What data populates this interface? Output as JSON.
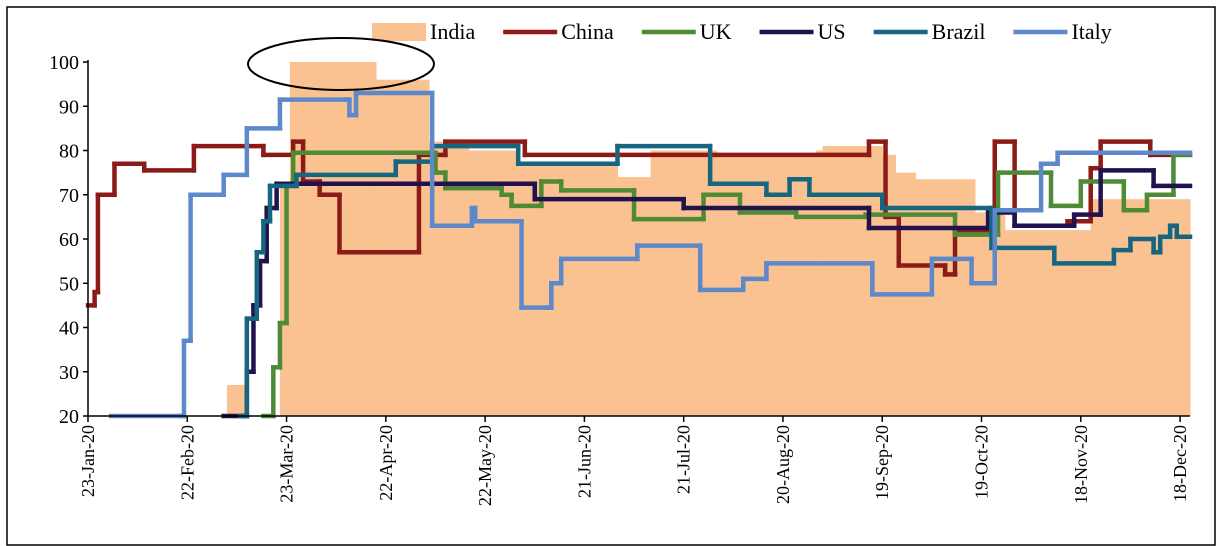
{
  "chart_data": {
    "type": "line",
    "step": true,
    "xlim": [
      "2020-01-23",
      "2020-12-21"
    ],
    "xticks": [
      {
        "value": "2020-01-23",
        "label": "23-Jan-20"
      },
      {
        "value": "2020-02-22",
        "label": "22-Feb-20"
      },
      {
        "value": "2020-03-23",
        "label": "23-Mar-20"
      },
      {
        "value": "2020-04-22",
        "label": "22-Apr-20"
      },
      {
        "value": "2020-05-22",
        "label": "22-May-20"
      },
      {
        "value": "2020-06-21",
        "label": "21-Jun-20"
      },
      {
        "value": "2020-07-21",
        "label": "21-Jul-20"
      },
      {
        "value": "2020-08-20",
        "label": "20-Aug-20"
      },
      {
        "value": "2020-09-19",
        "label": "19-Sep-20"
      },
      {
        "value": "2020-10-19",
        "label": "19-Oct-20"
      },
      {
        "value": "2020-11-18",
        "label": "18-Nov-20"
      },
      {
        "value": "2020-12-18",
        "label": "18-Dec-20"
      }
    ],
    "ylim": [
      20,
      100
    ],
    "yticks": [
      20,
      30,
      40,
      50,
      60,
      70,
      80,
      90,
      100
    ],
    "grid": false,
    "legend": "top",
    "series": [
      {
        "name": "India",
        "kind": "area",
        "color": "#fac191",
        "x": [
          "2020-01-23",
          "2020-03-05",
          "2020-03-11",
          "2020-03-21",
          "2020-03-24",
          "2020-04-19",
          "2020-05-05",
          "2020-05-17",
          "2020-06-01",
          "2020-07-01",
          "2020-07-11",
          "2020-07-31",
          "2020-08-30",
          "2020-09-01",
          "2020-09-19",
          "2020-09-23",
          "2020-09-29",
          "2020-10-17",
          "2020-10-26",
          "2020-11-21"
        ],
        "values": [
          20,
          27,
          20,
          72,
          100,
          96,
          82,
          80,
          77,
          74,
          80,
          79,
          80,
          81,
          79,
          75,
          73.5,
          66,
          62,
          69
        ]
      },
      {
        "name": "China",
        "kind": "line",
        "color": "#8c1a16",
        "x": [
          "2020-01-23",
          "2020-01-25",
          "2020-01-26",
          "2020-01-31",
          "2020-02-09",
          "2020-02-24",
          "2020-03-16",
          "2020-03-25",
          "2020-03-28",
          "2020-04-02",
          "2020-04-08",
          "2020-05-02",
          "2020-05-10",
          "2020-06-03",
          "2020-09-15",
          "2020-09-20",
          "2020-09-24",
          "2020-10-08",
          "2020-10-11",
          "2020-10-23",
          "2020-10-29",
          "2020-11-14",
          "2020-11-21",
          "2020-11-24",
          "2020-12-09"
        ],
        "values": [
          45,
          48,
          70,
          77,
          75.5,
          81,
          79,
          82,
          73,
          70,
          57,
          79,
          82,
          79,
          82,
          65,
          54,
          52,
          62,
          82,
          63,
          64,
          76,
          82,
          79
        ]
      },
      {
        "name": "UK",
        "kind": "line",
        "color": "#4f8a36",
        "x": [
          "2020-03-16",
          "2020-03-19",
          "2020-03-21",
          "2020-03-23",
          "2020-03-25",
          "2020-05-07",
          "2020-05-10",
          "2020-05-27",
          "2020-05-30",
          "2020-06-08",
          "2020-06-14",
          "2020-07-06",
          "2020-07-27",
          "2020-08-07",
          "2020-08-24",
          "2020-09-14",
          "2020-10-11",
          "2020-10-24",
          "2020-11-09",
          "2020-11-18",
          "2020-12-01",
          "2020-12-08",
          "2020-12-16"
        ],
        "values": [
          20,
          31,
          41,
          72,
          79.5,
          75,
          71.5,
          70,
          67.5,
          73,
          71,
          64.5,
          70,
          66,
          65,
          65.5,
          61,
          75,
          67.5,
          73,
          66.5,
          70,
          79
        ]
      },
      {
        "name": "US",
        "kind": "line",
        "color": "#21124e",
        "x": [
          "2020-03-04",
          "2020-03-10",
          "2020-03-11",
          "2020-03-13",
          "2020-03-15",
          "2020-03-17",
          "2020-03-20",
          "2020-06-06",
          "2020-07-21",
          "2020-09-15",
          "2020-10-21",
          "2020-10-29",
          "2020-11-16",
          "2020-11-24",
          "2020-12-10"
        ],
        "values": [
          20,
          20,
          30,
          45,
          55,
          67,
          72.5,
          69,
          67,
          62.5,
          66,
          63,
          65.5,
          75.5,
          72
        ]
      },
      {
        "name": "Brazil",
        "kind": "line",
        "color": "#17667f",
        "x": [
          "2020-03-09",
          "2020-03-11",
          "2020-03-14",
          "2020-03-16",
          "2020-03-18",
          "2020-03-26",
          "2020-04-25",
          "2020-05-06",
          "2020-06-01",
          "2020-07-01",
          "2020-07-29",
          "2020-08-15",
          "2020-08-22",
          "2020-08-28",
          "2020-09-19",
          "2020-10-22",
          "2020-11-10",
          "2020-11-28",
          "2020-12-03",
          "2020-12-10",
          "2020-12-12",
          "2020-12-15",
          "2020-12-17"
        ],
        "values": [
          20,
          42,
          57,
          64,
          72,
          74.5,
          77.5,
          81,
          77,
          81,
          72.5,
          70,
          73.5,
          70,
          67,
          58,
          54.5,
          57.5,
          60,
          57,
          60.5,
          63,
          60.5
        ]
      },
      {
        "name": "Italy",
        "kind": "line",
        "color": "#5d88c9",
        "x": [
          "2020-01-30",
          "2020-02-20",
          "2020-02-21",
          "2020-02-23",
          "2020-03-03",
          "2020-03-04",
          "2020-03-11",
          "2020-03-21",
          "2020-04-10",
          "2020-04-11",
          "2020-04-13",
          "2020-05-06",
          "2020-05-17",
          "2020-05-18",
          "2020-05-19",
          "2020-06-02",
          "2020-06-10",
          "2020-06-11",
          "2020-06-14",
          "2020-07-07",
          "2020-07-26",
          "2020-08-08",
          "2020-08-15",
          "2020-09-16",
          "2020-10-04",
          "2020-10-16",
          "2020-10-23",
          "2020-11-06",
          "2020-11-11"
        ],
        "values": [
          20,
          20,
          37,
          70,
          70,
          74.5,
          85,
          91.5,
          91.5,
          88,
          93,
          63,
          63,
          67,
          64,
          44.5,
          44.5,
          50,
          55.5,
          58.5,
          48.5,
          51,
          54.5,
          47.5,
          55.5,
          50,
          66.5,
          77,
          79.5
        ]
      }
    ]
  }
}
